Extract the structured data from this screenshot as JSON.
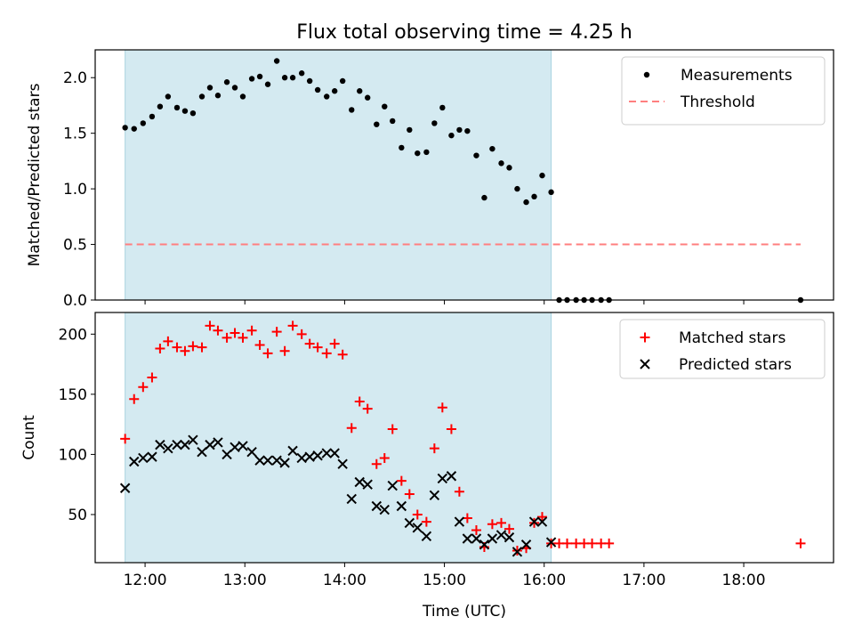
{
  "title": "Flux total observing time = 4.25 h",
  "chart_data": [
    {
      "type": "scatter",
      "ylabel": "Matched/Predicted stars",
      "xlim": [
        11.5,
        18.9
      ],
      "ylim": [
        0,
        2.25
      ],
      "yticks": [
        "0.0",
        "0.5",
        "1.0",
        "1.5",
        "2.0"
      ],
      "ytick_values": [
        0,
        0.5,
        1.0,
        1.5,
        2.0
      ],
      "shaded_span": [
        11.8,
        16.07
      ],
      "shaded_color": "#d4eaf1",
      "legend_position": "upper right",
      "series": [
        {
          "name": "Measurements",
          "color": "#000000",
          "marker": "dot",
          "x": [
            11.8,
            11.89,
            11.98,
            12.07,
            12.15,
            12.23,
            12.32,
            12.4,
            12.48,
            12.57,
            12.65,
            12.73,
            12.82,
            12.9,
            12.98,
            13.07,
            13.15,
            13.23,
            13.32,
            13.4,
            13.48,
            13.57,
            13.65,
            13.73,
            13.82,
            13.9,
            13.98,
            14.07,
            14.15,
            14.23,
            14.32,
            14.4,
            14.48,
            14.57,
            14.65,
            14.73,
            14.82,
            14.9,
            14.98,
            15.07,
            15.15,
            15.23,
            15.32,
            15.4,
            15.48,
            15.57,
            15.65,
            15.73,
            15.82,
            15.9,
            15.98,
            16.07,
            16.15,
            16.23,
            16.32,
            16.4,
            16.48,
            16.57,
            16.65,
            18.57
          ],
          "y": [
            1.55,
            1.54,
            1.59,
            1.65,
            1.74,
            1.83,
            1.73,
            1.7,
            1.68,
            1.83,
            1.91,
            1.84,
            1.96,
            1.91,
            1.83,
            1.99,
            2.01,
            1.94,
            2.15,
            2.0,
            2.0,
            2.04,
            1.97,
            1.89,
            1.83,
            1.88,
            1.97,
            1.71,
            1.88,
            1.82,
            1.58,
            1.74,
            1.61,
            1.37,
            1.53,
            1.32,
            1.33,
            1.59,
            1.73,
            1.48,
            1.53,
            1.52,
            1.3,
            0.92,
            1.36,
            1.23,
            1.19,
            1.0,
            0.88,
            0.93,
            1.12,
            0.97,
            0.0,
            0.0,
            0.0,
            0.0,
            0.0,
            0.0,
            0.0,
            0.0
          ]
        },
        {
          "name": "Threshold",
          "color": "#ff7f7f",
          "style": "dashed",
          "x": [
            11.8,
            18.57
          ],
          "y": [
            0.5,
            0.5
          ]
        }
      ]
    },
    {
      "type": "scatter",
      "xlabel": "Time (UTC)",
      "ylabel": "Count",
      "xlim": [
        11.5,
        18.9
      ],
      "ylim": [
        10,
        218
      ],
      "yticks": [
        "50",
        "100",
        "150",
        "200"
      ],
      "ytick_values": [
        50,
        100,
        150,
        200
      ],
      "xticks": [
        "12:00",
        "13:00",
        "14:00",
        "15:00",
        "16:00",
        "17:00",
        "18:00"
      ],
      "xtick_values": [
        12,
        13,
        14,
        15,
        16,
        17,
        18
      ],
      "shaded_span": [
        11.8,
        16.07
      ],
      "shaded_color": "#d4eaf1",
      "legend_position": "upper right",
      "series": [
        {
          "name": "Matched stars",
          "color": "#ff0000",
          "marker": "plus",
          "x": [
            11.8,
            11.89,
            11.98,
            12.07,
            12.15,
            12.23,
            12.32,
            12.4,
            12.48,
            12.57,
            12.65,
            12.73,
            12.82,
            12.9,
            12.98,
            13.07,
            13.15,
            13.23,
            13.32,
            13.4,
            13.48,
            13.57,
            13.65,
            13.73,
            13.82,
            13.9,
            13.98,
            14.07,
            14.15,
            14.23,
            14.32,
            14.4,
            14.48,
            14.57,
            14.65,
            14.73,
            14.82,
            14.9,
            14.98,
            15.07,
            15.15,
            15.23,
            15.32,
            15.4,
            15.48,
            15.57,
            15.65,
            15.73,
            15.82,
            15.9,
            15.98,
            16.07,
            16.15,
            16.23,
            16.32,
            16.4,
            16.48,
            16.57,
            16.65,
            18.57
          ],
          "y": [
            113,
            146,
            156,
            164,
            188,
            194,
            189,
            186,
            190,
            189,
            207,
            203,
            197,
            201,
            197,
            203,
            191,
            184,
            202,
            186,
            207,
            200,
            192,
            189,
            184,
            192,
            183,
            122,
            144,
            138,
            92,
            97,
            121,
            78,
            67,
            50,
            44,
            105,
            139,
            121,
            69,
            47,
            37,
            23,
            42,
            43,
            38,
            20,
            22,
            43,
            48,
            26,
            26,
            26,
            26,
            26,
            26,
            26,
            26,
            26
          ]
        },
        {
          "name": "Predicted stars",
          "color": "#000000",
          "marker": "x",
          "x": [
            11.8,
            11.89,
            11.98,
            12.07,
            12.15,
            12.23,
            12.32,
            12.4,
            12.48,
            12.57,
            12.65,
            12.73,
            12.82,
            12.9,
            12.98,
            13.07,
            13.15,
            13.23,
            13.32,
            13.4,
            13.48,
            13.57,
            13.65,
            13.73,
            13.82,
            13.9,
            13.98,
            14.07,
            14.15,
            14.23,
            14.32,
            14.4,
            14.48,
            14.57,
            14.65,
            14.73,
            14.82,
            14.9,
            14.98,
            15.07,
            15.15,
            15.23,
            15.32,
            15.4,
            15.48,
            15.57,
            15.65,
            15.73,
            15.82,
            15.9,
            15.98,
            16.07
          ],
          "y": [
            72,
            94,
            97,
            98,
            108,
            105,
            108,
            108,
            112,
            102,
            108,
            110,
            100,
            106,
            107,
            102,
            95,
            95,
            95,
            93,
            103,
            97,
            98,
            99,
            101,
            101,
            92,
            63,
            77,
            75,
            57,
            54,
            74,
            57,
            43,
            39,
            32,
            66,
            80,
            82,
            44,
            30,
            30,
            25,
            30,
            33,
            31,
            19,
            25,
            44,
            44,
            27
          ]
        }
      ]
    }
  ]
}
